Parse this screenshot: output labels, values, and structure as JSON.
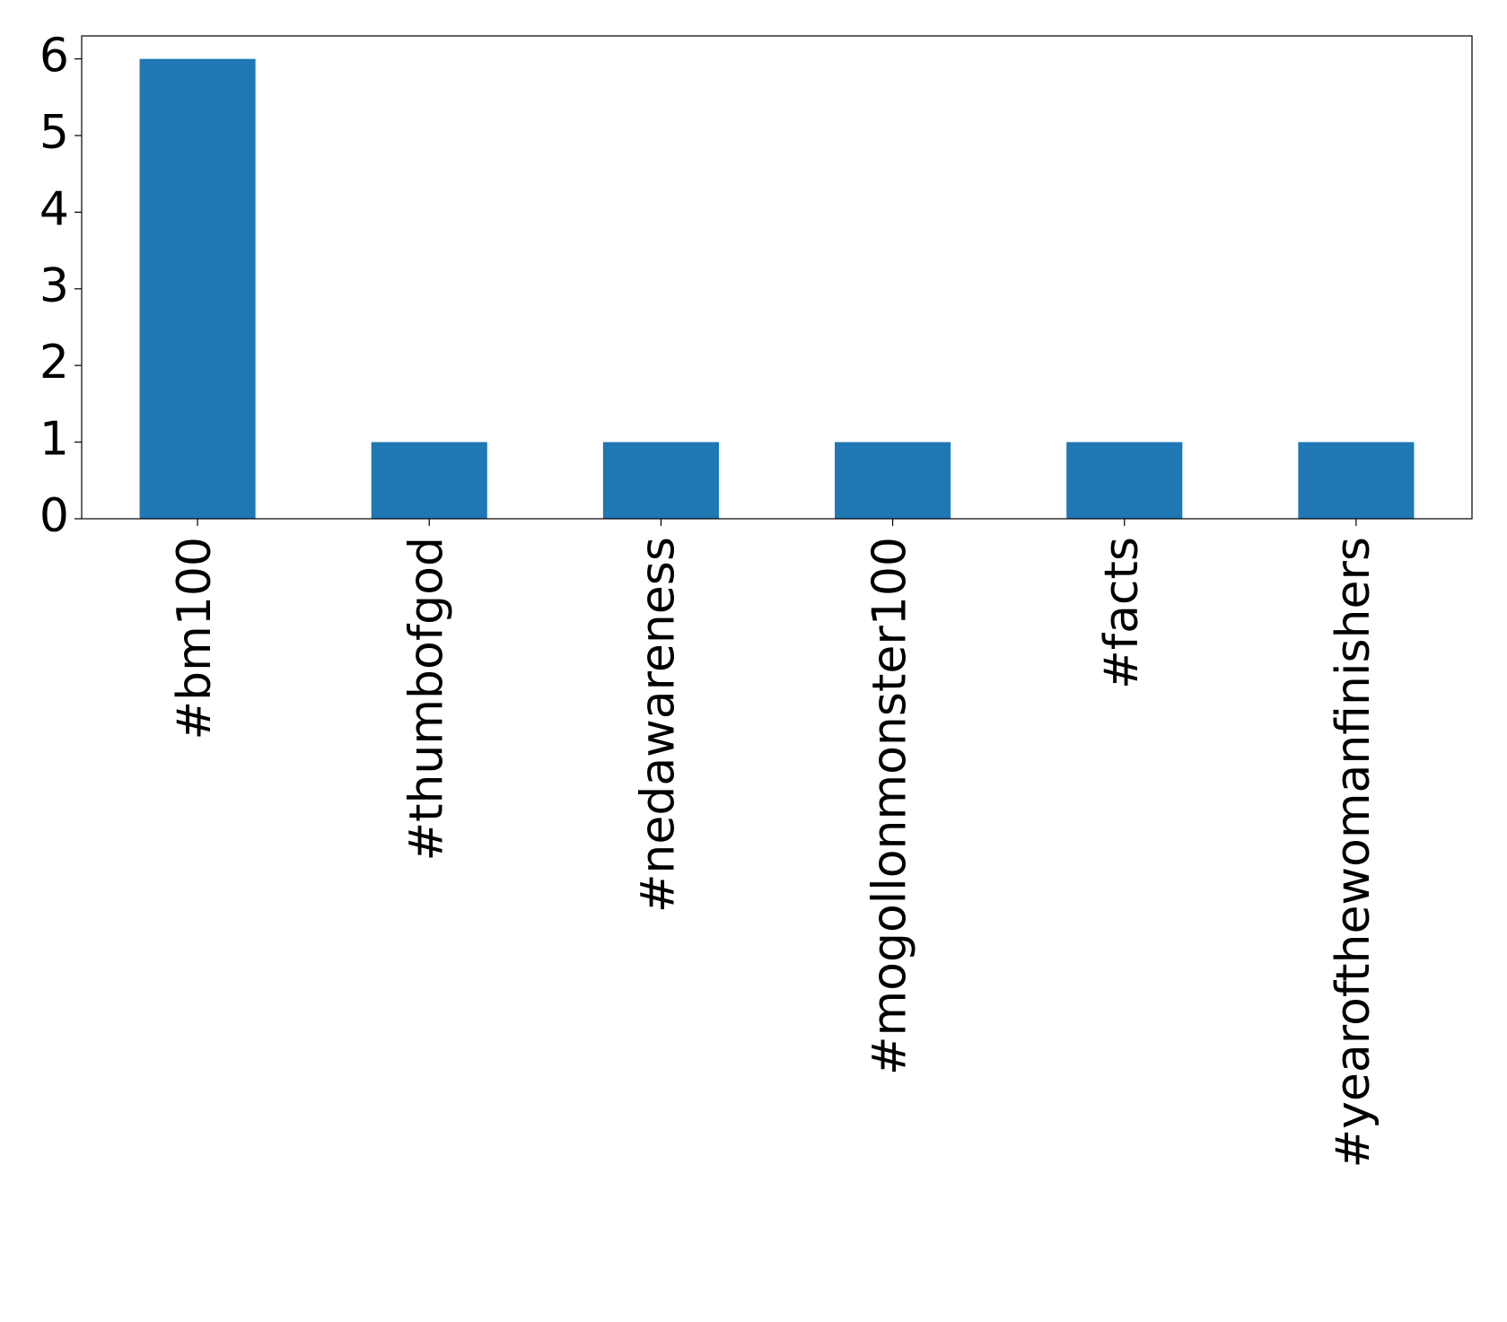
{
  "chart_data": {
    "type": "bar",
    "categories": [
      "#bm100",
      "#thumbofgod",
      "#nedawareness",
      "#mogollonmonster100",
      "#facts",
      "#yearofthewomanfinishers"
    ],
    "values": [
      6,
      1,
      1,
      1,
      1,
      1
    ],
    "color": "#1f77b4",
    "ylim": [
      0,
      6.3
    ],
    "yticks": [
      0,
      1,
      2,
      3,
      4,
      5,
      6
    ],
    "grid": false
  }
}
